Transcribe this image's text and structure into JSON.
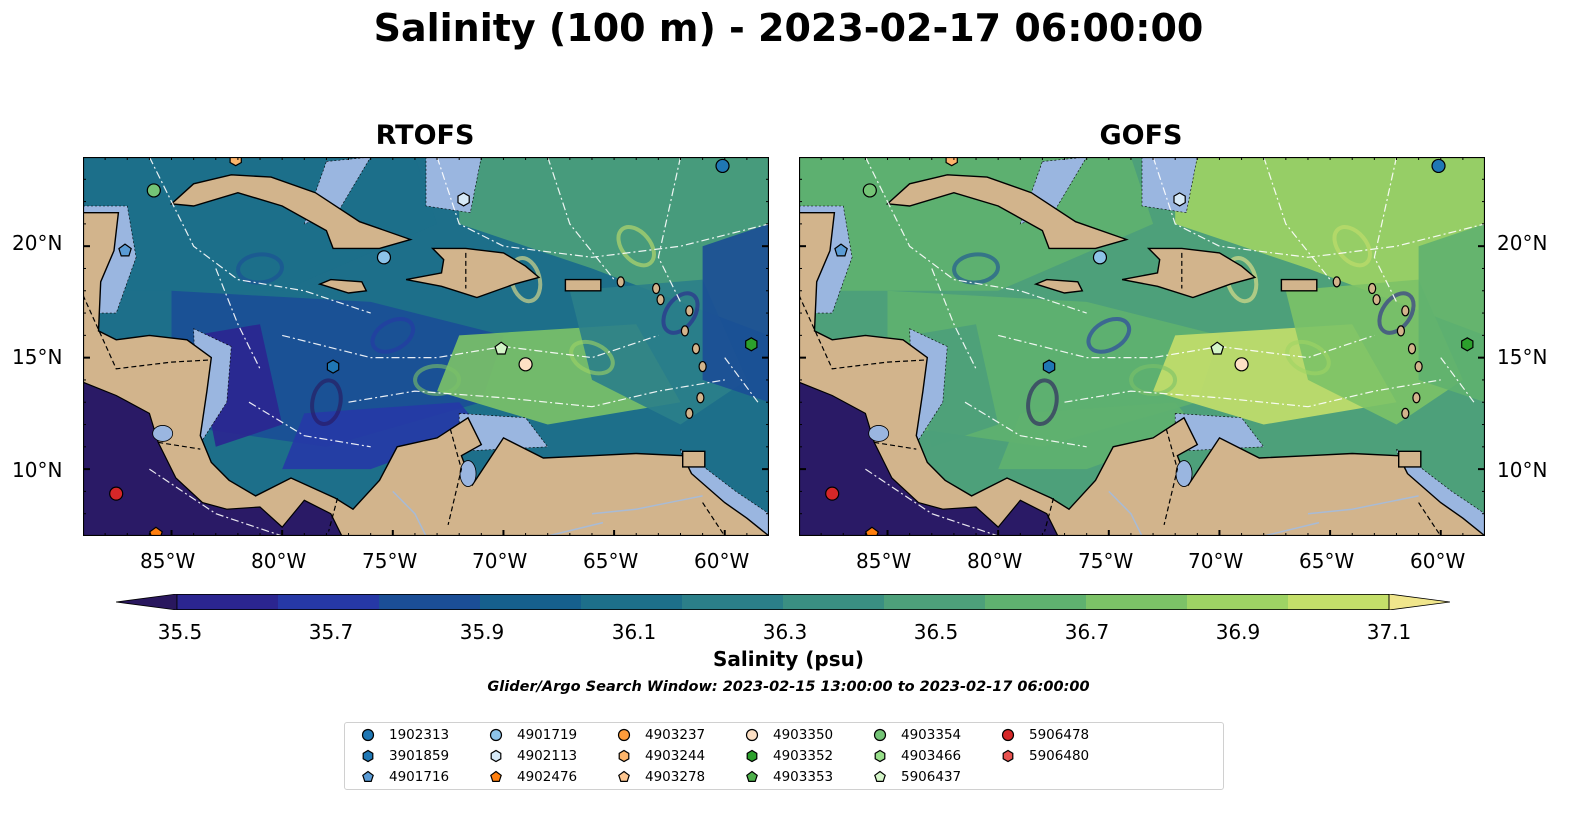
{
  "figure": {
    "title": "Salinity (100 m) - 2023-02-17 06:00:00",
    "subtitle": "Glider/Argo Search Window: 2023-02-15 13:00:00 to 2023-02-17 06:00:00"
  },
  "panels": [
    {
      "title": "RTOFS",
      "palette_shift": 0
    },
    {
      "title": "GOFS",
      "palette_shift": 1
    }
  ],
  "axes": {
    "lat_ticks": [
      "20°N",
      "15°N",
      "10°N"
    ],
    "lon_ticks": [
      "85°W",
      "80°W",
      "75°W",
      "70°W",
      "65°W",
      "60°W"
    ],
    "lon_range": [
      -89,
      -58
    ],
    "lat_range": [
      7,
      24
    ]
  },
  "colorbar": {
    "label": "Salinity (psu)",
    "ticks": [
      "35.5",
      "35.7",
      "35.9",
      "36.1",
      "36.3",
      "36.5",
      "36.7",
      "36.9",
      "37.1"
    ],
    "range": [
      35.4,
      37.2
    ],
    "colors": [
      "#29175e",
      "#2b2590",
      "#2638a6",
      "#1b4e96",
      "#16608d",
      "#1d6f8a",
      "#2b7f89",
      "#3a8f82",
      "#4da07a",
      "#5fb16f",
      "#7cc267",
      "#9ed364",
      "#c4df6a",
      "#f0e68c"
    ]
  },
  "colors": {
    "land": "#d2b48c",
    "shelf": "#9ab6e0",
    "pacific": "#2a1a66"
  },
  "legend": [
    {
      "id": "1902313",
      "marker": "circle",
      "color": "#1f77b4"
    },
    {
      "id": "3901859",
      "marker": "hexagon",
      "color": "#1f77b4"
    },
    {
      "id": "4901716",
      "marker": "pentagon",
      "color": "#5a9bd5"
    },
    {
      "id": "4901719",
      "marker": "circle",
      "color": "#8dc3e8"
    },
    {
      "id": "4902113",
      "marker": "hexagon",
      "color": "#d6e9f7"
    },
    {
      "id": "4902476",
      "marker": "pentagon",
      "color": "#ff7f0e"
    },
    {
      "id": "4903237",
      "marker": "circle",
      "color": "#fd9c3b"
    },
    {
      "id": "4903244",
      "marker": "hexagon",
      "color": "#fdb56b"
    },
    {
      "id": "4903278",
      "marker": "pentagon",
      "color": "#fdc690"
    },
    {
      "id": "4903350",
      "marker": "circle",
      "color": "#fde0c5"
    },
    {
      "id": "4903352",
      "marker": "hexagon",
      "color": "#2ca02c"
    },
    {
      "id": "4903353",
      "marker": "pentagon",
      "color": "#4daf4a"
    },
    {
      "id": "4903354",
      "marker": "circle",
      "color": "#74c476"
    },
    {
      "id": "4903466",
      "marker": "hexagon",
      "color": "#98df8a"
    },
    {
      "id": "5906437",
      "marker": "pentagon",
      "color": "#d4f5c8"
    },
    {
      "id": "5906478",
      "marker": "circle",
      "color": "#d62728"
    },
    {
      "id": "5906480",
      "marker": "hexagon",
      "color": "#e8524f"
    }
  ],
  "floats": [
    {
      "id": "1902313",
      "lon": -60.1,
      "lat": 23.6
    },
    {
      "id": "3901859",
      "lon": -77.7,
      "lat": 14.6
    },
    {
      "id": "4901716",
      "lon": -87.1,
      "lat": 19.8
    },
    {
      "id": "4901719",
      "lon": -75.4,
      "lat": 19.5
    },
    {
      "id": "4902113",
      "lon": -71.8,
      "lat": 22.1
    },
    {
      "id": "4902476",
      "lon": -85.7,
      "lat": 7.1
    },
    {
      "id": "4903244",
      "lon": -82.1,
      "lat": 23.9
    },
    {
      "id": "4903350",
      "lon": -69.0,
      "lat": 14.7
    },
    {
      "id": "4903352",
      "lon": -58.8,
      "lat": 15.6
    },
    {
      "id": "4903354",
      "lon": -85.8,
      "lat": 22.5
    },
    {
      "id": "5906437",
      "lon": -70.1,
      "lat": 15.4
    },
    {
      "id": "5906478",
      "lon": -87.5,
      "lat": 8.9
    }
  ]
}
